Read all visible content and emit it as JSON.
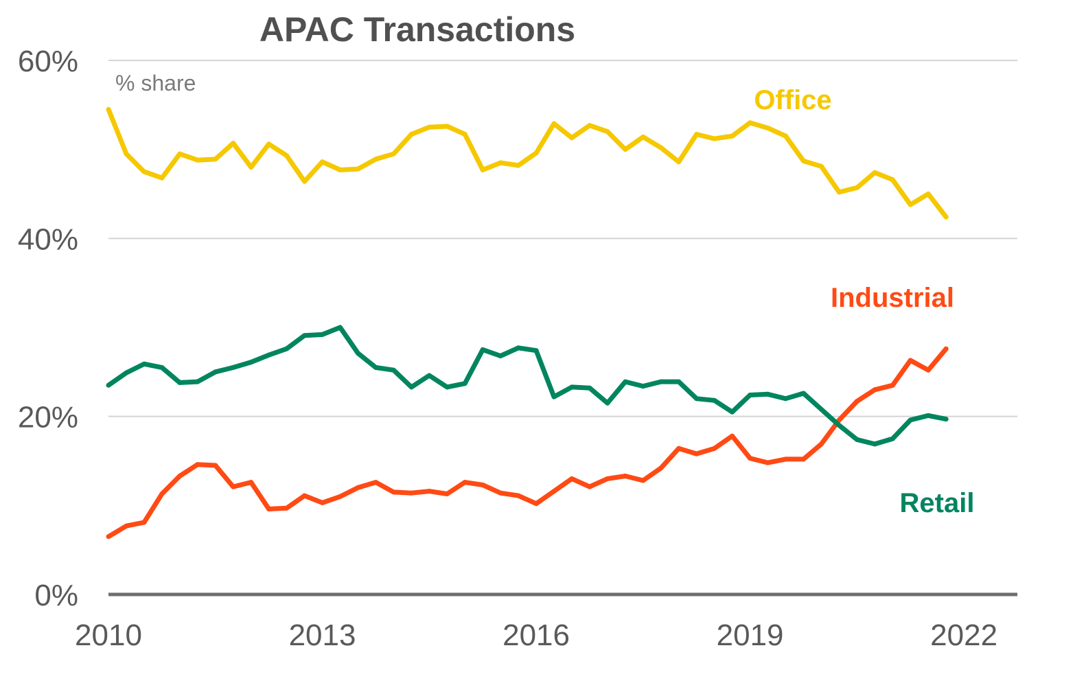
{
  "chart_data": {
    "type": "line",
    "title": "APAC Transactions",
    "unit_label": "% share",
    "xlabel": "",
    "ylabel": "",
    "x_ticks": [
      2010,
      2013,
      2016,
      2019,
      2022
    ],
    "x_tick_labels": [
      "2010",
      "2013",
      "2016",
      "2019",
      "2022"
    ],
    "xlim": [
      2010,
      2022.75
    ],
    "y_ticks": [
      0,
      20,
      40,
      60
    ],
    "y_tick_labels": [
      "0%",
      "20%",
      "40%",
      "60%"
    ],
    "ylim": [
      0,
      60
    ],
    "grid": "horizontal",
    "legend": "inline labels",
    "series": [
      {
        "name": "Office",
        "color": "#f5c800",
        "x_start": 2010,
        "x_step": 0.25,
        "values": [
          54.5,
          49.5,
          47.5,
          46.8,
          49.5,
          48.8,
          48.9,
          50.7,
          48.0,
          50.6,
          49.3,
          46.4,
          48.6,
          47.7,
          47.8,
          48.9,
          49.5,
          51.7,
          52.5,
          52.6,
          51.7,
          47.7,
          48.5,
          48.2,
          49.6,
          52.9,
          51.3,
          52.7,
          52.0,
          50.0,
          51.4,
          50.2,
          48.6,
          51.7,
          51.2,
          51.5,
          53.0,
          52.4,
          51.5,
          48.7,
          48.1,
          45.2,
          45.7,
          47.4,
          46.6,
          43.8,
          45.0,
          42.4
        ]
      },
      {
        "name": "Industrial",
        "color": "#ff4a14",
        "x_start": 2010,
        "x_step": 0.25,
        "values": [
          6.5,
          7.7,
          8.1,
          11.3,
          13.3,
          14.6,
          14.5,
          12.1,
          12.6,
          9.6,
          9.7,
          11.1,
          10.3,
          11.0,
          12.0,
          12.6,
          11.5,
          11.4,
          11.6,
          11.3,
          12.6,
          12.3,
          11.4,
          11.1,
          10.2,
          11.6,
          13.0,
          12.1,
          13.0,
          13.3,
          12.8,
          14.2,
          16.4,
          15.8,
          16.4,
          17.8,
          15.3,
          14.8,
          15.2,
          15.2,
          16.9,
          19.6,
          21.7,
          23.0,
          23.5,
          26.3,
          25.2,
          27.6
        ]
      },
      {
        "name": "Retail",
        "color": "#00855f",
        "x_start": 2010,
        "x_step": 0.25,
        "values": [
          23.5,
          24.9,
          25.9,
          25.5,
          23.8,
          23.9,
          25.0,
          25.5,
          26.1,
          26.9,
          27.6,
          29.1,
          29.2,
          30.0,
          27.1,
          25.5,
          25.2,
          23.3,
          24.6,
          23.3,
          23.7,
          27.5,
          26.8,
          27.7,
          27.4,
          22.2,
          23.3,
          23.2,
          21.5,
          23.9,
          23.4,
          23.9,
          23.9,
          22.0,
          21.8,
          20.5,
          22.4,
          22.5,
          22.0,
          22.6,
          20.8,
          19.0,
          17.4,
          16.9,
          17.5,
          19.6,
          20.1,
          19.7
        ]
      }
    ]
  }
}
